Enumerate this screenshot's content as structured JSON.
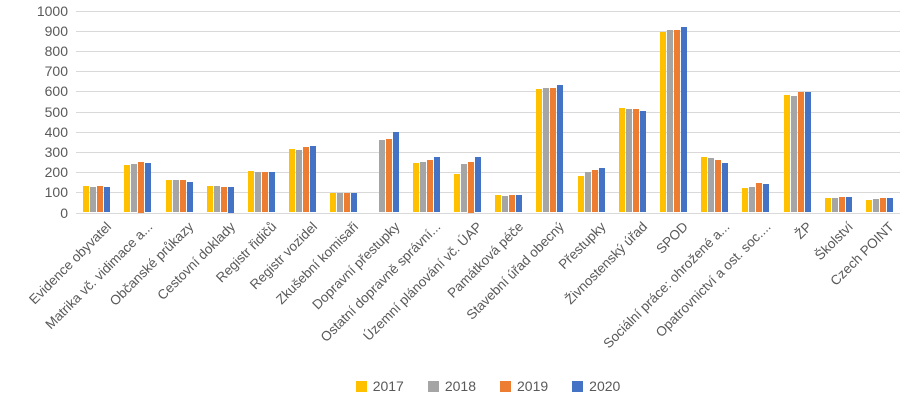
{
  "colors": {
    "background": "#ffffff",
    "gridline": "#d9d9d9",
    "axis_text": "#595959"
  },
  "chart_data": {
    "type": "bar",
    "title": "",
    "xlabel": "",
    "ylabel": "",
    "ylim": [
      0,
      1000
    ],
    "y_ticks": [
      0,
      100,
      200,
      300,
      400,
      500,
      600,
      700,
      800,
      900,
      1000
    ],
    "grid": true,
    "legend_position": "bottom",
    "categories": [
      "Evidence obyvatel",
      "Matrika vč. vidimace a...",
      "Občanské průkazy",
      "Cestovní doklady",
      "Registr řidičů",
      "Registr vozidel",
      "Zkušební komisaři",
      "Dopravní přestupky",
      "Ostatní dopravně správní...",
      "Územní plánování vč. ÚAP",
      "Památková péče",
      "Stavební úřad obecný",
      "Přestupky",
      "Živnostenský úřad",
      "SPOD",
      "Sociální práce: ohrožené a...",
      "Opatrovnictví a ost. soc....",
      "ŽP",
      "Školství",
      "Czech POINT"
    ],
    "series": [
      {
        "name": "2017",
        "color": "#FFC000",
        "values": [
          130,
          235,
          160,
          132,
          203,
          315,
          97,
          0,
          245,
          190,
          85,
          612,
          180,
          517,
          892,
          274,
          120,
          580,
          70,
          62
        ]
      },
      {
        "name": "2018",
        "color": "#A5A5A5",
        "values": [
          128,
          238,
          160,
          130,
          200,
          310,
          95,
          360,
          252,
          240,
          83,
          617,
          200,
          511,
          905,
          269,
          128,
          576,
          70,
          68
        ]
      },
      {
        "name": "2019",
        "color": "#ED7D31",
        "values": [
          130,
          250,
          160,
          127,
          200,
          323,
          97,
          366,
          262,
          250,
          87,
          617,
          208,
          513,
          905,
          262,
          145,
          598,
          78,
          72
        ]
      },
      {
        "name": "2020",
        "color": "#4472C4",
        "values": [
          124,
          245,
          153,
          125,
          201,
          330,
          99,
          400,
          274,
          274,
          85,
          630,
          218,
          501,
          916,
          244,
          143,
          596,
          75,
          70
        ]
      }
    ]
  }
}
